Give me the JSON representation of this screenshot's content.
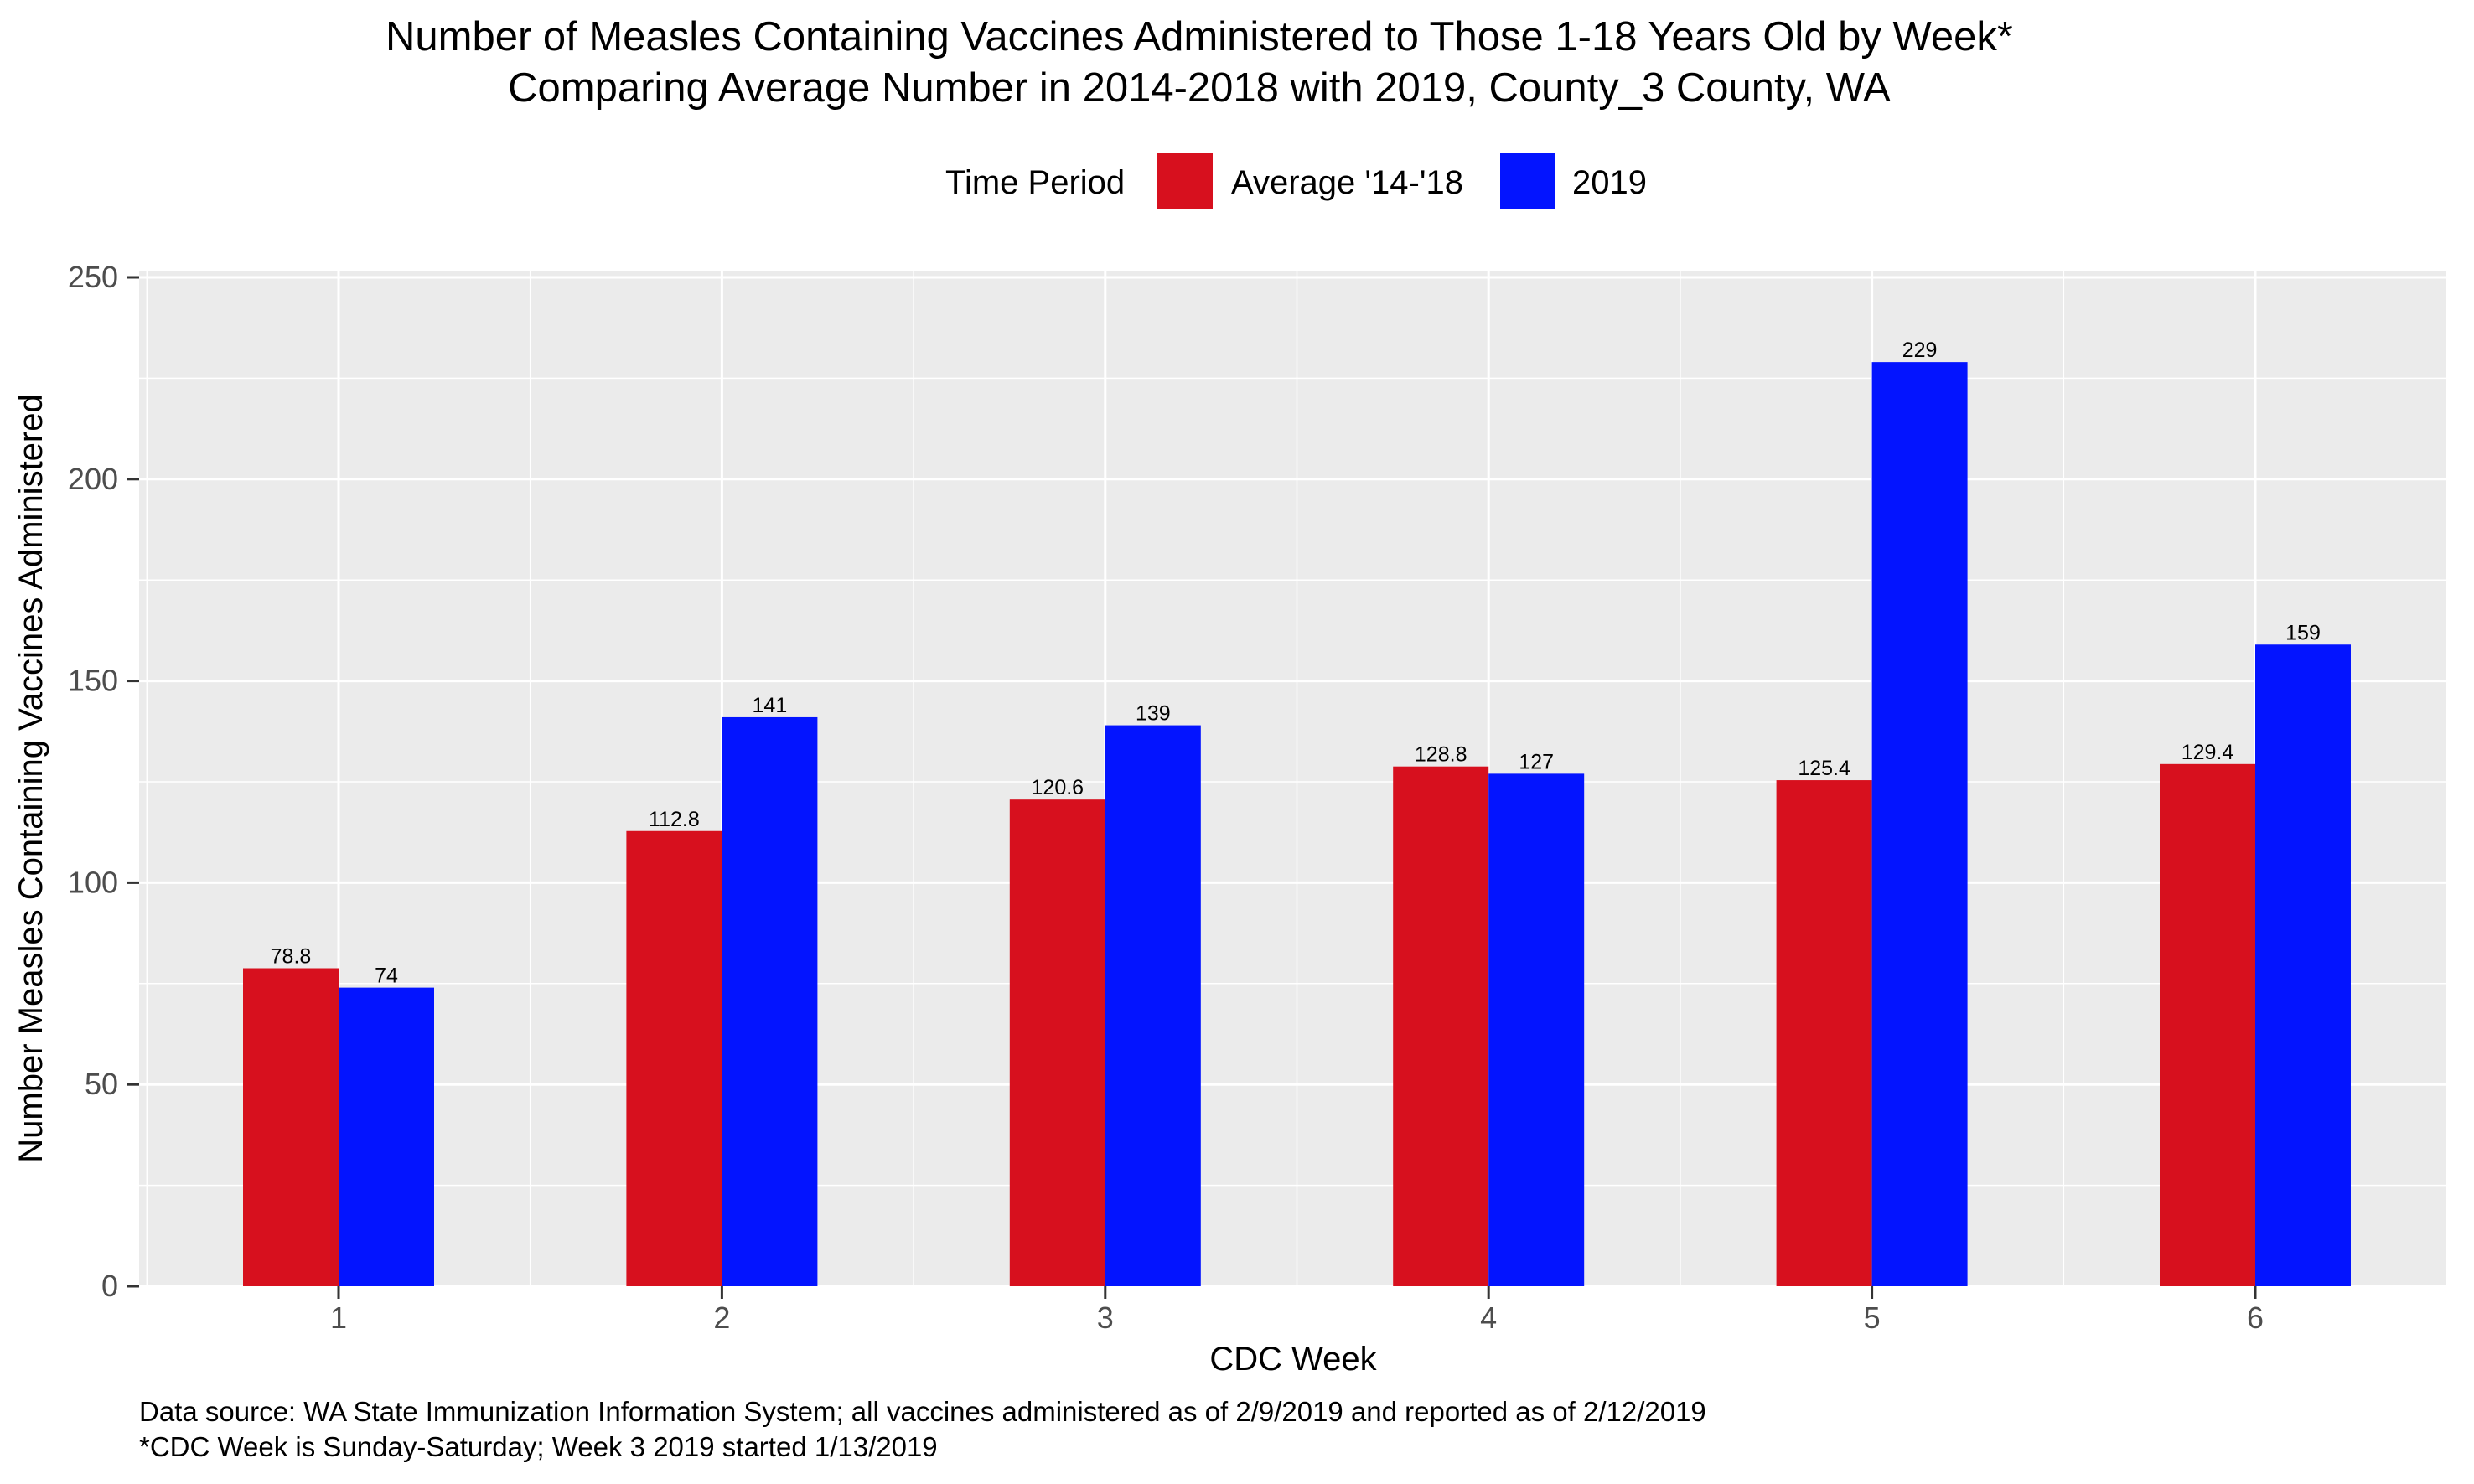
{
  "chart_data": {
    "type": "bar",
    "title": "Number of Measles Containing Vaccines Administered to Those 1-18 Years Old by Week*",
    "subtitle": "Comparing Average Number in 2014-2018 with 2019, County_3 County, WA",
    "xlabel": "CDC Week",
    "ylabel": "Number Measles Containing Vaccines Administered",
    "categories": [
      "1",
      "2",
      "3",
      "4",
      "5",
      "6"
    ],
    "ylim": [
      0,
      250
    ],
    "yticks": [
      0,
      50,
      100,
      150,
      200,
      250
    ],
    "grid": true,
    "legend": {
      "title": "Time Period",
      "position": "top"
    },
    "series": [
      {
        "name": "Average '14-'18",
        "color": "#D7101E",
        "values": [
          78.8,
          112.8,
          120.6,
          128.8,
          125.4,
          129.4
        ],
        "labels": [
          "78.8",
          "112.8",
          "120.6",
          "128.8",
          "125.4",
          "129.4"
        ]
      },
      {
        "name": "2019",
        "color": "#0314FF",
        "values": [
          74,
          141,
          139,
          127,
          229,
          159
        ],
        "labels": [
          "74",
          "141",
          "139",
          "127",
          "229",
          "159"
        ]
      }
    ],
    "caption": [
      "Data source: WA State Immunization Information System; all vaccines administered as of 2/9/2019 and reported as of 2/12/2019",
      "*CDC Week is Sunday-Saturday; Week 3 2019 started 1/13/2019"
    ]
  }
}
